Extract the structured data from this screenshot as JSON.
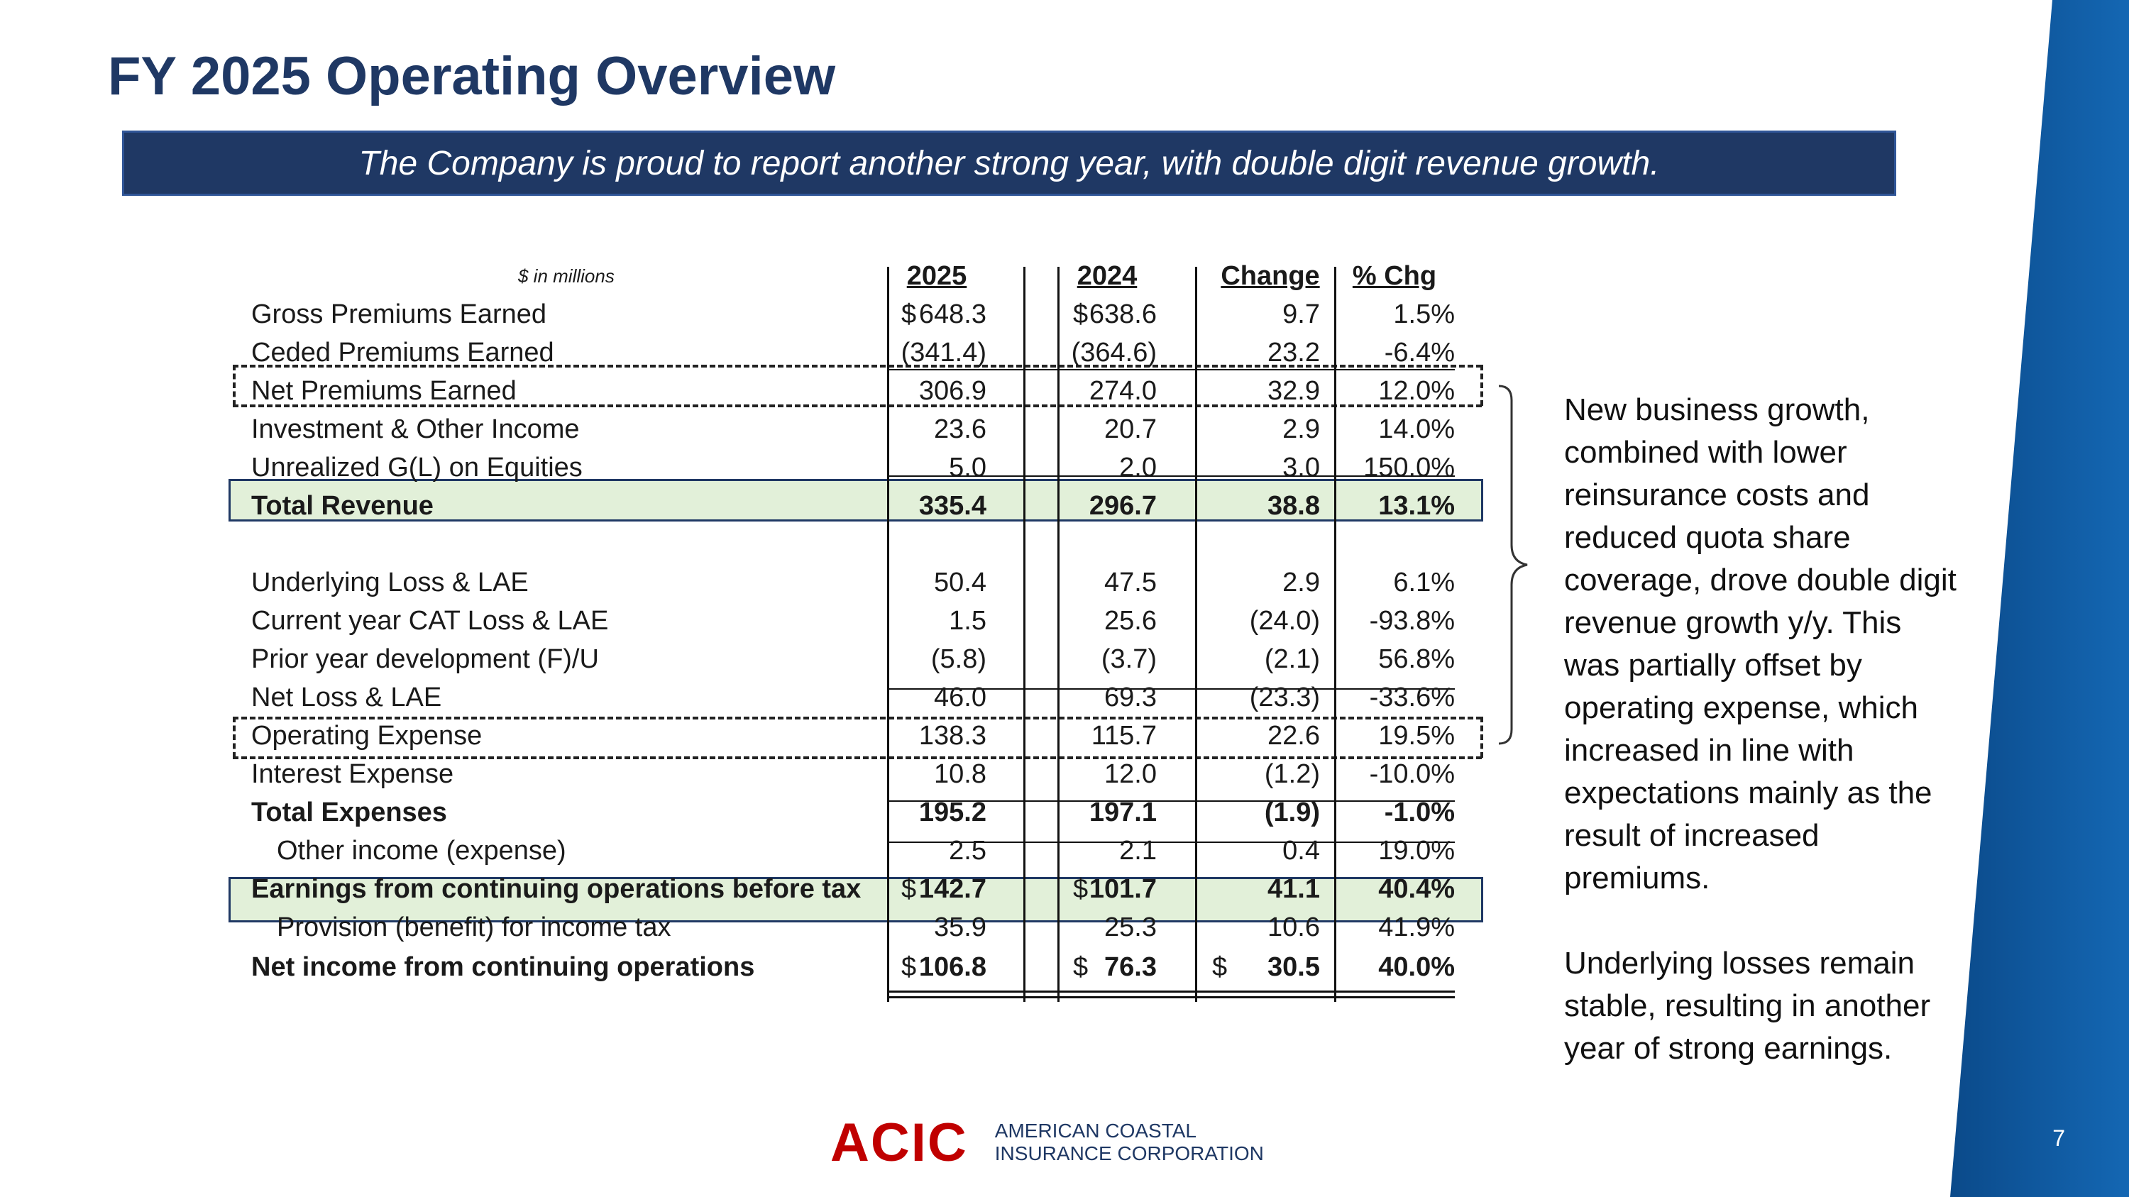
{
  "title": "FY 2025 Operating Overview",
  "banner": "The Company is proud to report another strong year, with double digit revenue growth.",
  "table": {
    "units": "$ in millions",
    "headers": [
      "2025",
      "2024",
      "Change",
      "% Chg"
    ],
    "rows": [
      {
        "label": "Gross Premiums Earned",
        "v2025": "648.3",
        "v2024": "638.6",
        "chg": "9.7",
        "pct": "1.5%",
        "cur2025": "$",
        "cur2024": "$",
        "curchg": ""
      },
      {
        "label": "Ceded Premiums Earned",
        "v2025": "(341.4)",
        "v2024": "(364.6)",
        "chg": "23.2",
        "pct": "-6.4%",
        "cur2025": "",
        "cur2024": "",
        "curchg": ""
      },
      {
        "label": "Net Premiums Earned",
        "v2025": "306.9",
        "v2024": "274.0",
        "chg": "32.9",
        "pct": "12.0%",
        "cur2025": "",
        "cur2024": "",
        "curchg": ""
      },
      {
        "label": "Investment & Other Income",
        "v2025": "23.6",
        "v2024": "20.7",
        "chg": "2.9",
        "pct": "14.0%",
        "cur2025": "",
        "cur2024": "",
        "curchg": ""
      },
      {
        "label": "Unrealized G(L) on Equities",
        "v2025": "5.0",
        "v2024": "2.0",
        "chg": "3.0",
        "pct": "150.0%",
        "cur2025": "",
        "cur2024": "",
        "curchg": ""
      },
      {
        "label": "Total Revenue",
        "v2025": "335.4",
        "v2024": "296.7",
        "chg": "38.8",
        "pct": "13.1%",
        "cur2025": "",
        "cur2024": "",
        "curchg": ""
      },
      {
        "label": "Underlying Loss & LAE",
        "v2025": "50.4",
        "v2024": "47.5",
        "chg": "2.9",
        "pct": "6.1%",
        "cur2025": "",
        "cur2024": "",
        "curchg": ""
      },
      {
        "label": "Current year CAT Loss & LAE",
        "v2025": "1.5",
        "v2024": "25.6",
        "chg": "(24.0)",
        "pct": "-93.8%",
        "cur2025": "",
        "cur2024": "",
        "curchg": ""
      },
      {
        "label": "Prior year development (F)/U",
        "v2025": "(5.8)",
        "v2024": "(3.7)",
        "chg": "(2.1)",
        "pct": "56.8%",
        "cur2025": "",
        "cur2024": "",
        "curchg": ""
      },
      {
        "label": "Net Loss & LAE",
        "v2025": "46.0",
        "v2024": "69.3",
        "chg": "(23.3)",
        "pct": "-33.6%",
        "cur2025": "",
        "cur2024": "",
        "curchg": ""
      },
      {
        "label": "Operating Expense",
        "v2025": "138.3",
        "v2024": "115.7",
        "chg": "22.6",
        "pct": "19.5%",
        "cur2025": "",
        "cur2024": "",
        "curchg": ""
      },
      {
        "label": "Interest Expense",
        "v2025": "10.8",
        "v2024": "12.0",
        "chg": "(1.2)",
        "pct": "-10.0%",
        "cur2025": "",
        "cur2024": "",
        "curchg": ""
      },
      {
        "label": "Total Expenses",
        "v2025": "195.2",
        "v2024": "197.1",
        "chg": "(1.9)",
        "pct": "-1.0%",
        "cur2025": "",
        "cur2024": "",
        "curchg": ""
      },
      {
        "label": "Other income (expense)",
        "v2025": "2.5",
        "v2024": "2.1",
        "chg": "0.4",
        "pct": "19.0%",
        "cur2025": "",
        "cur2024": "",
        "curchg": ""
      },
      {
        "label": "Earnings from continuing operations before tax",
        "v2025": "142.7",
        "v2024": "101.7",
        "chg": "41.1",
        "pct": "40.4%",
        "cur2025": "$",
        "cur2024": "$",
        "curchg": ""
      },
      {
        "label": "Provision (benefit) for income tax",
        "v2025": "35.9",
        "v2024": "25.3",
        "chg": "10.6",
        "pct": "41.9%",
        "cur2025": "",
        "cur2024": "",
        "curchg": ""
      },
      {
        "label": "Net income from continuing operations",
        "v2025": "106.8",
        "v2024": "76.3",
        "chg": "30.5",
        "pct": "40.0%",
        "cur2025": "$",
        "cur2024": "$",
        "curchg": "$"
      }
    ]
  },
  "commentary": {
    "p1": "New business growth, combined with lower reinsurance costs and reduced quota share coverage, drove double digit revenue growth y/y. This was partially offset by operating expense, which increased in line with expectations mainly as the result of increased premiums.",
    "p2": "Underlying losses remain stable, resulting in another year of strong earnings."
  },
  "footer": {
    "logo_mark": "ACIC",
    "logo_line1": "AMERICAN COASTAL",
    "logo_line2": "INSURANCE CORPORATION",
    "page_number": "7"
  },
  "colors": {
    "title": "#1f3864",
    "banner_bg": "#1f3864",
    "highlight_fill": "#e2f0d9",
    "logo_red": "#c00000",
    "side_band": "#0e5aa0"
  }
}
